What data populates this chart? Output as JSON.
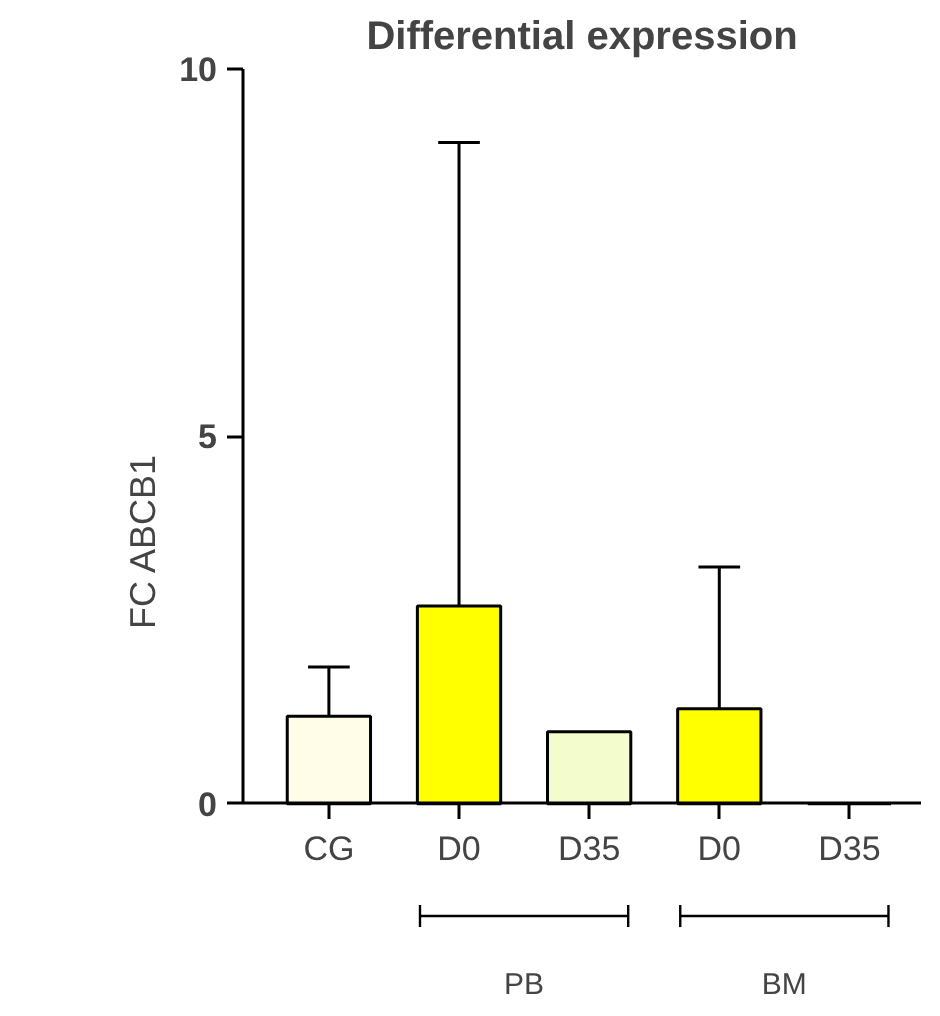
{
  "chart_data": {
    "type": "bar",
    "title": "Differential expression",
    "ylabel": "FC ABCB1",
    "categories": [
      "CG",
      "D0",
      "D35",
      "D0",
      "D35"
    ],
    "values": [
      1.19,
      2.69,
      0.98,
      1.29,
      0
    ],
    "colors": [
      "#fffde8",
      "#ffff00",
      "#f2fccc",
      "#ffff00",
      "#ffff00"
    ],
    "errors": [
      [
        1.19,
        1.86
      ],
      [
        2.69,
        9.0
      ],
      null,
      [
        1.29,
        3.22
      ],
      null
    ],
    "ylim": [
      0,
      10
    ],
    "yticks": [
      0,
      5,
      10
    ],
    "grid": false,
    "annotations": [
      "PB",
      "BM"
    ]
  }
}
